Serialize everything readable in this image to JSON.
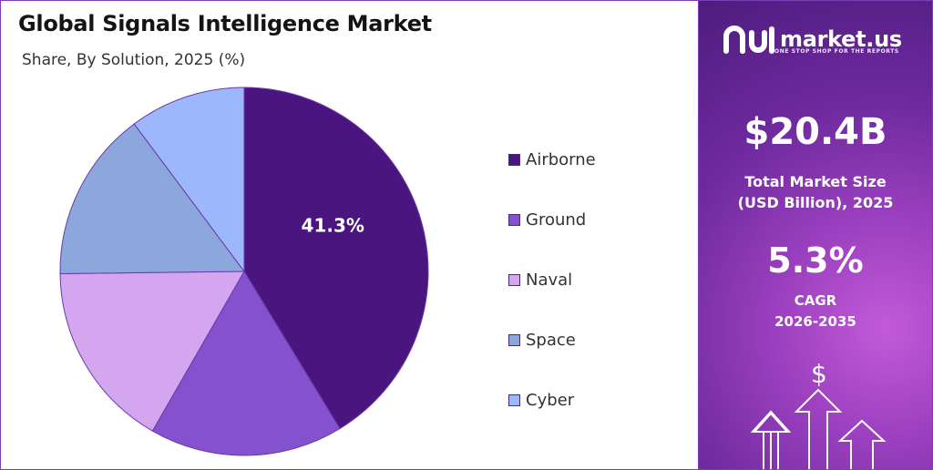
{
  "chart_data": {
    "type": "pie",
    "title": "Global Signals Intelligence Market",
    "subtitle": "Share, By Solution, 2025 (%)",
    "categories": [
      "Airborne",
      "Ground",
      "Naval",
      "Space",
      "Cyber"
    ],
    "values": [
      41.3,
      17.0,
      16.5,
      15.0,
      10.2
    ],
    "colors": [
      "#4b1580",
      "#8552cf",
      "#d3a6ef",
      "#8ca7db",
      "#9cb8fb"
    ],
    "data_labels": [
      "41.3%",
      "",
      "",
      "",
      ""
    ],
    "legend_position": "right"
  },
  "brand": {
    "name": "market.us",
    "tagline": "ONE STOP SHOP FOR THE REPORTS"
  },
  "stats": {
    "market_size_value": "$20.4B",
    "market_size_label_1": "Total Market Size",
    "market_size_label_2": "(USD Billion), 2025",
    "cagr_value": "5.3%",
    "cagr_label_1": "CAGR",
    "cagr_label_2": "2026-2035"
  },
  "icons": {
    "currency": "dollar-icon"
  }
}
